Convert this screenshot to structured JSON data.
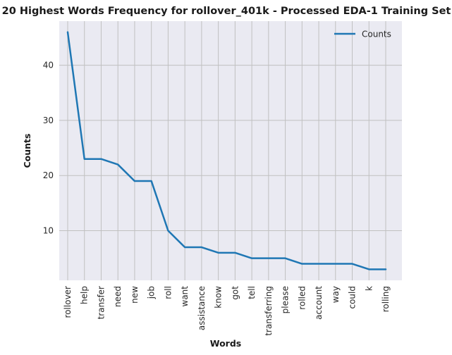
{
  "chart_data": {
    "type": "line",
    "title": "20 Highest Words Frequency for rollover_401k - Processed EDA-1 Training Set",
    "xlabel": "Words",
    "ylabel": "Counts",
    "categories": [
      "rollover",
      "help",
      "transfer",
      "need",
      "new",
      "job",
      "roll",
      "want",
      "assistance",
      "know",
      "got",
      "tell",
      "transferring",
      "please",
      "rolled",
      "account",
      "way",
      "could",
      "k",
      "rolling"
    ],
    "series": [
      {
        "name": "Counts",
        "values": [
          46,
          23,
          23,
          22,
          19,
          19,
          10,
          7,
          7,
          6,
          6,
          5,
          5,
          5,
          4,
          4,
          4,
          4,
          3,
          3
        ],
        "color": "#1f77b4"
      }
    ],
    "ylim": [
      1,
      48
    ],
    "yticks": [
      10,
      20,
      30,
      40
    ],
    "grid": true,
    "legend": "top-right",
    "background": "#eaeaf2",
    "grid_color": "#c0c0c0"
  }
}
